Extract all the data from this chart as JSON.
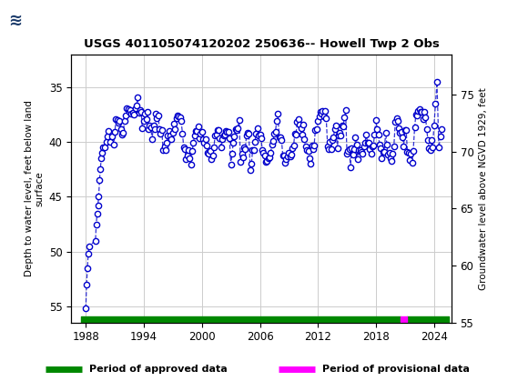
{
  "title": "USGS 401105074120202 250636-- Howell Twp 2 Obs",
  "ylabel_left": "Depth to water level, feet below land\nsurface",
  "ylabel_right": "Groundwater level above NGVD 1929, feet",
  "xlim": [
    1986.5,
    2025.8
  ],
  "ylim_left": [
    56.5,
    32.0
  ],
  "ylim_right": [
    55.0,
    78.5
  ],
  "xticks": [
    1988,
    1994,
    2000,
    2006,
    2012,
    2018,
    2024
  ],
  "yticks_left": [
    35,
    40,
    45,
    50,
    55
  ],
  "yticks_right": [
    55,
    60,
    65,
    70,
    75
  ],
  "data_color": "#0000CC",
  "approved_color": "#008800",
  "provisional_color": "#FF00FF",
  "background_color": "#ffffff",
  "header_color": "#1a6b3c",
  "grid_color": "#cccccc",
  "approved_bar_start": 1987.5,
  "approved_bar_end1": 2020.5,
  "provisional_bar_start": 2020.5,
  "provisional_bar_end": 2021.2,
  "approved_bar_start2": 2021.2,
  "approved_bar_end2": 2025.5
}
